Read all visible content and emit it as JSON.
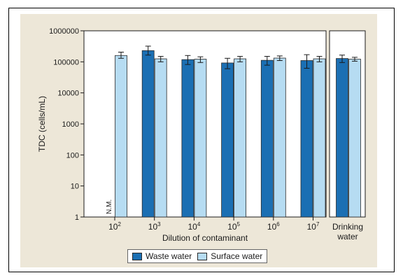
{
  "chart_data": {
    "type": "bar",
    "ylabel": "TDC (cells/mL)",
    "xlabel": "Dilution of contaminant",
    "yscale": "log",
    "ylim": [
      1,
      1000000
    ],
    "yticks": [
      "1",
      "10",
      "100",
      "1000",
      "10000",
      "100000",
      "1000000"
    ],
    "groups": [
      {
        "label_base": "10",
        "label_exp": "2",
        "waste": null,
        "waste_err": null,
        "waste_note": "N.M.",
        "surface": 160000,
        "surface_err": [
          130000,
          205000
        ]
      },
      {
        "label_base": "10",
        "label_exp": "3",
        "waste": 230000,
        "waste_err": [
          165000,
          320000
        ],
        "surface": 125000,
        "surface_err": [
          100000,
          150000
        ]
      },
      {
        "label_base": "10",
        "label_exp": "4",
        "waste": 118000,
        "waste_err": [
          82000,
          160000
        ],
        "surface": 122000,
        "surface_err": [
          95000,
          145000
        ]
      },
      {
        "label_base": "10",
        "label_exp": "5",
        "waste": 92000,
        "waste_err": [
          60000,
          130000
        ],
        "surface": 125000,
        "surface_err": [
          100000,
          150000
        ]
      },
      {
        "label_base": "10",
        "label_exp": "6",
        "waste": 112000,
        "waste_err": [
          78000,
          150000
        ],
        "surface": 132000,
        "surface_err": [
          110000,
          155000
        ]
      },
      {
        "label_base": "10",
        "label_exp": "7",
        "waste": 110000,
        "waste_err": [
          62000,
          170000
        ],
        "surface": 125000,
        "surface_err": [
          100000,
          150000
        ]
      }
    ],
    "drinking": {
      "label_line1": "Drinking",
      "label_line2": "water",
      "waste": 128000,
      "waste_err": [
        95000,
        165000
      ],
      "surface": 122000,
      "surface_err": [
        105000,
        140000
      ]
    },
    "series": [
      {
        "name": "Waste water",
        "color": "#1b6fb3"
      },
      {
        "name": "Surface water",
        "color": "#b6dcf2"
      }
    ],
    "legend_position": "bottom-center",
    "grid": false
  }
}
